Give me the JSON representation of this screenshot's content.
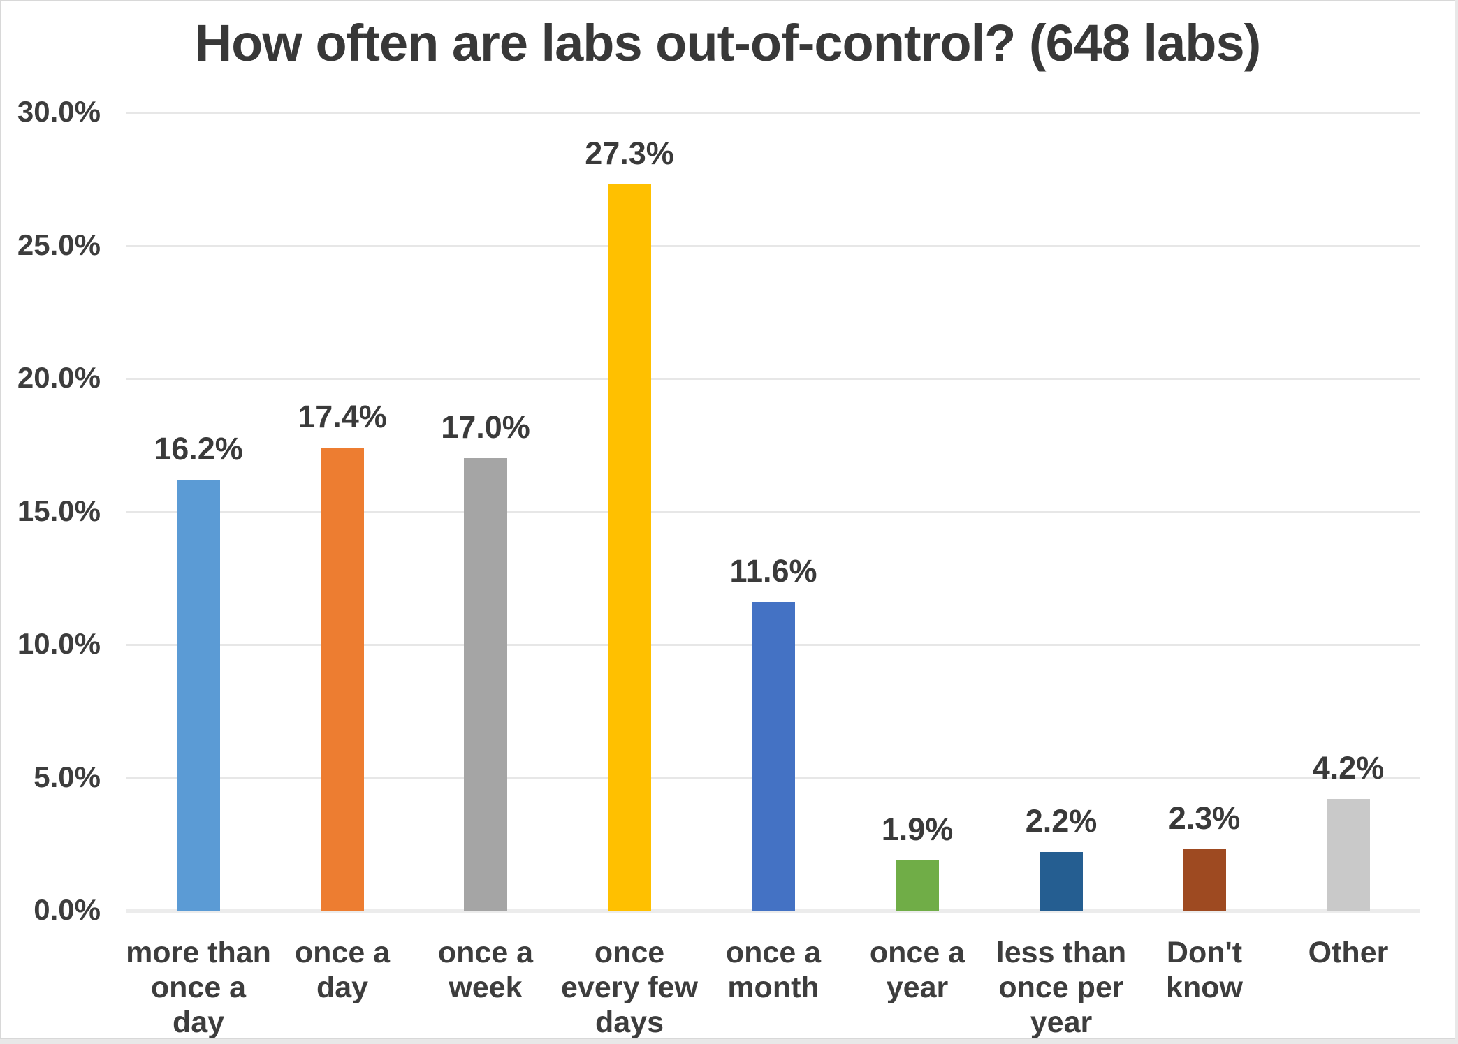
{
  "chart_data": {
    "type": "bar",
    "title": "How often are labs out-of-control? (648 labs)",
    "categories": [
      "more than\nonce a\nday",
      "once a\nday",
      "once a\nweek",
      "once\nevery few\ndays",
      "once a\nmonth",
      "once a\nyear",
      "less than\nonce per\nyear",
      "Don't\nknow",
      "Other"
    ],
    "values": [
      16.2,
      17.4,
      17.0,
      27.3,
      11.6,
      1.9,
      2.2,
      2.3,
      4.2
    ],
    "value_labels": [
      "16.2%",
      "17.4%",
      "17.0%",
      "27.3%",
      "11.6%",
      "1.9%",
      "2.2%",
      "2.3%",
      "4.2%"
    ],
    "bar_colors": [
      "#5B9BD5",
      "#ED7D31",
      "#A5A5A5",
      "#FFC000",
      "#4472C4",
      "#70AD47",
      "#255E91",
      "#9E4A21",
      "#C9C9C9"
    ],
    "y_tick_values": [
      30,
      25,
      20,
      15,
      10,
      5,
      0
    ],
    "y_tick_labels": [
      "30.0%",
      "25.0%",
      "20.0%",
      "15.0%",
      "10.0%",
      "5.0%",
      "0.0%"
    ],
    "ylim": [
      0,
      30
    ],
    "xlabel": "",
    "ylabel": "",
    "grid": true,
    "legend_position": "none"
  },
  "style_colors": {
    "grid": "#e7e7e7",
    "axis": "#ececec",
    "label_text": "#3d3d3d",
    "title_text": "#383838",
    "canvas_background": "#ffffff"
  }
}
